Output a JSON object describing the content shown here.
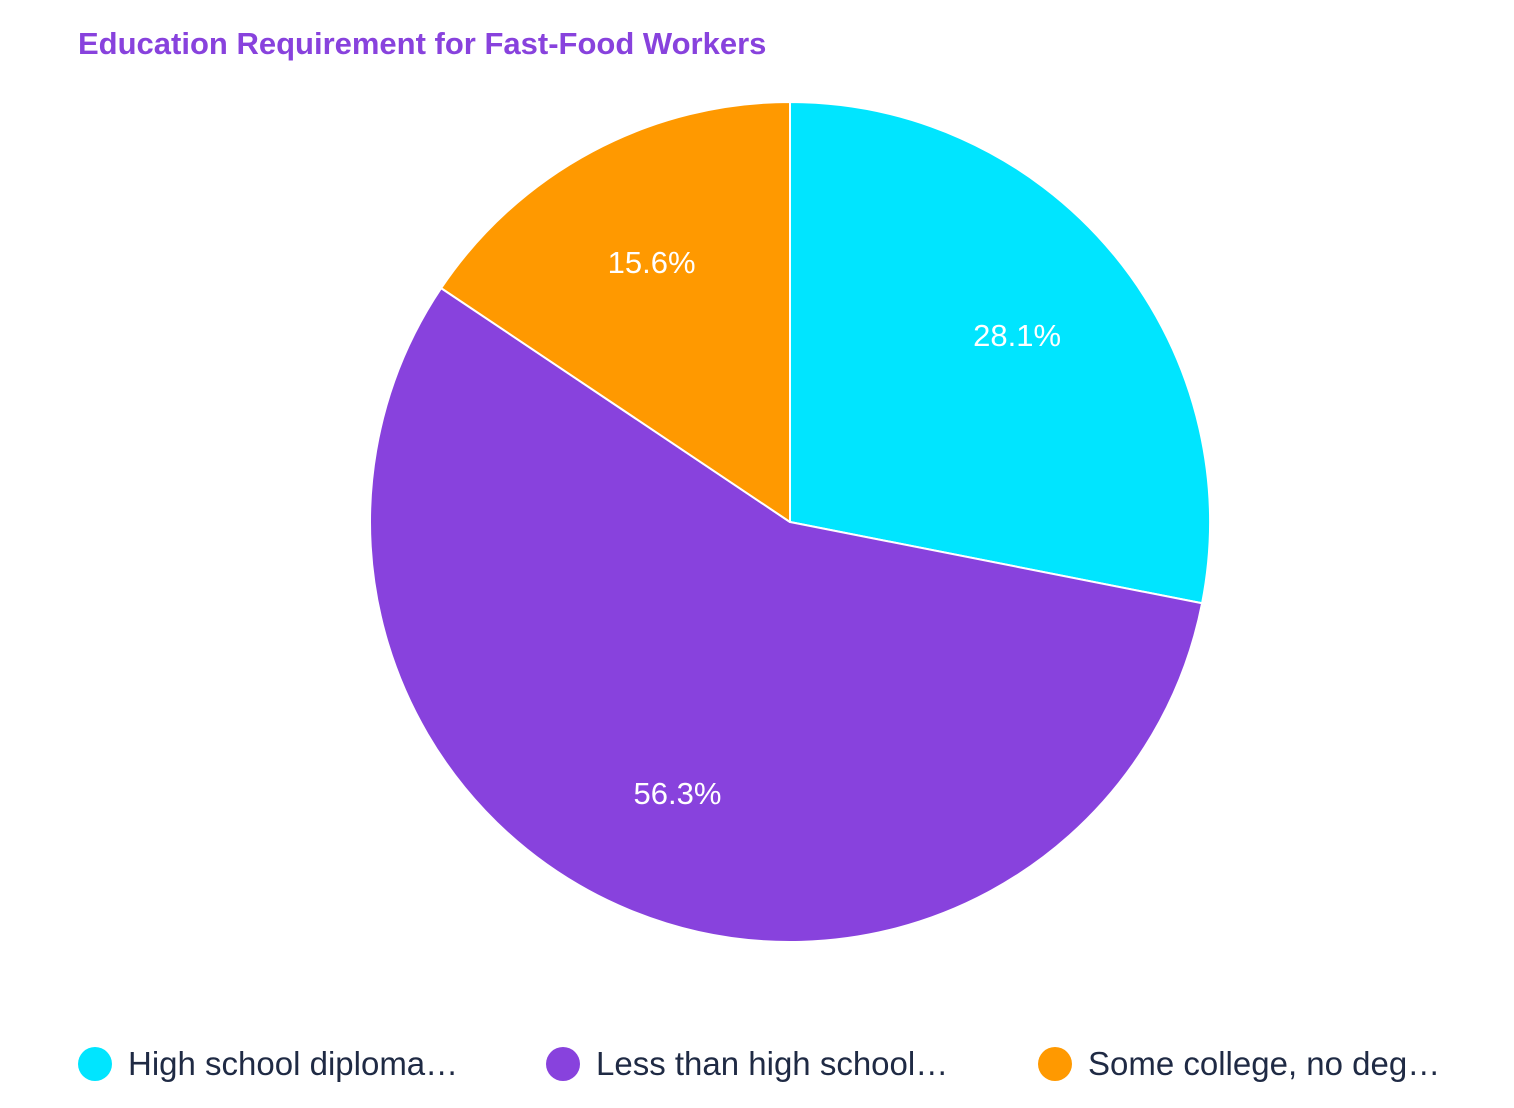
{
  "chart_data": {
    "type": "pie",
    "title": "Education Requirement for Fast-Food Workers",
    "slices": [
      {
        "name": "High school diploma…",
        "value": 28.1,
        "label": "28.1%",
        "color": "#00e5ff"
      },
      {
        "name": "Less than high school…",
        "value": 56.3,
        "label": "56.3%",
        "color": "#8842dd"
      },
      {
        "name": "Some college, no deg…",
        "value": 15.6,
        "label": "15.6%",
        "color": "#ff9900"
      }
    ],
    "legend_position": "bottom",
    "title_color": "#8842dd",
    "start_angle_deg": 0,
    "direction": "clockwise"
  }
}
